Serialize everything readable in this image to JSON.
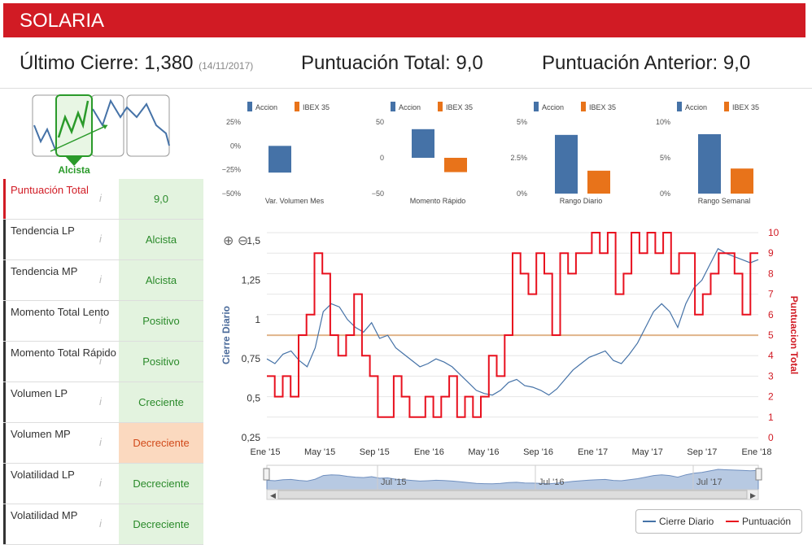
{
  "header": {
    "title": "SOLARIA"
  },
  "scores": {
    "last_close_label": "Último Cierre: ",
    "last_close_value": "1,380",
    "last_close_date": "(14/11/2017)",
    "total_label": "Puntuación Total: ",
    "total_value": "9,0",
    "prev_label": "Puntuación Anterior: ",
    "prev_value": "9,0"
  },
  "trend_widget": {
    "label": "Alcista"
  },
  "indicators": [
    {
      "label": "Puntuación Total",
      "value": "9,0",
      "status": "good",
      "highlight": true
    },
    {
      "label": "Tendencia LP",
      "value": "Alcista",
      "status": "good"
    },
    {
      "label": "Tendencia MP",
      "value": "Alcista",
      "status": "good"
    },
    {
      "label": "Momento Total Lento",
      "value": "Positivo",
      "status": "good"
    },
    {
      "label": "Momento Total Rápido",
      "value": "Positivo",
      "status": "good"
    },
    {
      "label": "Volumen LP",
      "value": "Creciente",
      "status": "good"
    },
    {
      "label": "Volumen MP",
      "value": "Decreciente",
      "status": "bad"
    },
    {
      "label": "Volatilidad LP",
      "value": "Decreciente",
      "status": "good"
    },
    {
      "label": "Volatilidad MP",
      "value": "Decreciente",
      "status": "good"
    }
  ],
  "info_icon": "i",
  "colors": {
    "accion": "#4572a7",
    "ibex": "#e8731a",
    "brand_red": "#d11b24",
    "close_line": "#4572a7",
    "score_line": "#e8101e",
    "threshold": "#e0b48a"
  },
  "chart_data": [
    {
      "type": "bar",
      "title": "Var. Volumen Mes",
      "legend": [
        "Accion",
        "IBEX 35"
      ],
      "yticks": [
        "25%",
        "0%",
        "−25%",
        "−50%"
      ],
      "ylim": [
        -50,
        25
      ],
      "series": [
        {
          "name": "Accion",
          "values": [
            -28
          ]
        }
      ]
    },
    {
      "type": "bar",
      "title": "Momento Rápido",
      "legend": [
        "Accion",
        "IBEX 35"
      ],
      "yticks": [
        "50",
        "0",
        "−50"
      ],
      "ylim": [
        -50,
        50
      ],
      "series": [
        {
          "name": "Accion",
          "values": [
            40
          ]
        },
        {
          "name": "IBEX 35",
          "values": [
            -20
          ]
        }
      ]
    },
    {
      "type": "bar",
      "title": "Rango Diario",
      "legend": [
        "Accion",
        "IBEX 35"
      ],
      "yticks": [
        "5%",
        "2.5%",
        "0%"
      ],
      "ylim": [
        0,
        5
      ],
      "series": [
        {
          "name": "Accion",
          "values": [
            4.1
          ]
        },
        {
          "name": "IBEX 35",
          "values": [
            1.6
          ]
        }
      ]
    },
    {
      "type": "bar",
      "title": "Rango Semanal",
      "legend": [
        "Accion",
        "IBEX 35"
      ],
      "yticks": [
        "10%",
        "5%",
        "0%"
      ],
      "ylim": [
        0,
        10
      ],
      "series": [
        {
          "name": "Accion",
          "values": [
            8.3
          ]
        },
        {
          "name": "IBEX 35",
          "values": [
            3.5
          ]
        }
      ]
    },
    {
      "type": "line",
      "title": "",
      "ylabel": "Cierre Diario",
      "y2label": "Puntuacion Total",
      "xlabels": [
        "Ene '15",
        "May '15",
        "Sep '15",
        "Ene '16",
        "May '16",
        "Sep '16",
        "Ene '17",
        "May '17",
        "Sep '17",
        "Ene '18"
      ],
      "yticks_left": [
        "1,5",
        "1,25",
        "1",
        "0,75",
        "0,5",
        "0,25"
      ],
      "yticks_right": [
        "10",
        "9",
        "8",
        "7",
        "6",
        "5",
        "4",
        "3",
        "2",
        "1",
        "0"
      ],
      "ylim": [
        0.25,
        1.5
      ],
      "y2lim": [
        0,
        10
      ],
      "threshold": 0.9,
      "series": [
        {
          "name": "Cierre Diario",
          "values": [
            0.75,
            0.72,
            0.78,
            0.8,
            0.74,
            0.7,
            0.82,
            1.05,
            1.1,
            1.08,
            1.0,
            0.95,
            0.92,
            0.98,
            0.88,
            0.9,
            0.82,
            0.78,
            0.74,
            0.7,
            0.72,
            0.75,
            0.73,
            0.7,
            0.65,
            0.6,
            0.55,
            0.53,
            0.52,
            0.55,
            0.6,
            0.62,
            0.58,
            0.57,
            0.55,
            0.52,
            0.56,
            0.62,
            0.68,
            0.72,
            0.76,
            0.78,
            0.8,
            0.74,
            0.72,
            0.78,
            0.85,
            0.95,
            1.05,
            1.1,
            1.05,
            0.95,
            1.1,
            1.2,
            1.25,
            1.35,
            1.45,
            1.42,
            1.4,
            1.38,
            1.36,
            1.38
          ]
        },
        {
          "name": "Puntuación",
          "values": [
            3,
            2,
            3,
            2,
            5,
            6,
            9,
            8,
            5,
            4,
            5,
            7,
            4,
            3,
            1,
            1,
            3,
            2,
            1,
            1,
            2,
            1,
            2,
            3,
            1,
            2,
            1,
            2,
            4,
            3,
            5,
            9,
            8,
            7,
            9,
            8,
            5,
            9,
            8,
            9,
            9,
            10,
            9,
            10,
            7,
            8,
            10,
            9,
            10,
            9,
            10,
            8,
            9,
            9,
            6,
            7,
            8,
            9,
            9,
            8,
            6,
            9
          ]
        }
      ],
      "legend": [
        "Cierre Diario",
        "Puntuación"
      ],
      "navigator_labels": [
        "Jul '15",
        "Jul '16",
        "Jul '17"
      ]
    }
  ]
}
